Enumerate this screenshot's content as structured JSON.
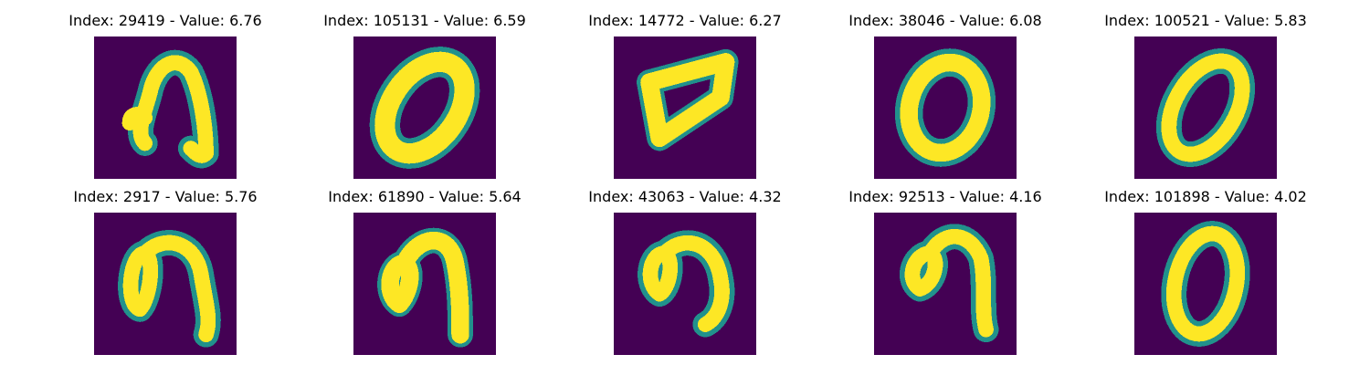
{
  "colors": {
    "background": "#440154",
    "teal": "#21918c",
    "green": "#5ec962",
    "yellow": "#fde725"
  },
  "panels": [
    {
      "title": "Index: 29419 - Value: 6.76",
      "digit": "slanted-nine-with-hook"
    },
    {
      "title": "Index: 105131 - Value: 6.59",
      "digit": "zero-slanted"
    },
    {
      "title": "Index: 14772 - Value: 6.27",
      "digit": "zero-skewed-flat"
    },
    {
      "title": "Index: 38046 - Value: 6.08",
      "digit": "zero"
    },
    {
      "title": "Index: 100521 - Value: 5.83",
      "digit": "zero-slanted"
    },
    {
      "title": "Index: 2917 - Value: 5.76",
      "digit": "loop-with-tail"
    },
    {
      "title": "Index: 61890 - Value: 5.64",
      "digit": "loop-with-tail"
    },
    {
      "title": "Index: 43063 - Value: 4.32",
      "digit": "loop-with-tail"
    },
    {
      "title": "Index: 92513 - Value: 4.16",
      "digit": "loop-with-tail"
    },
    {
      "title": "Index: 101898 - Value: 4.02",
      "digit": "zero"
    }
  ]
}
